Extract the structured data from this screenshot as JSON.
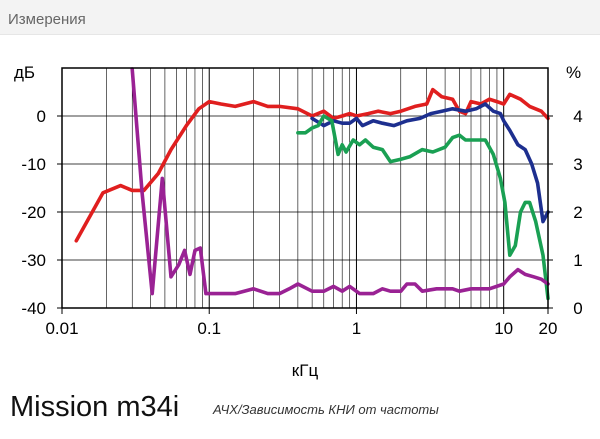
{
  "header": {
    "title": "Измерения"
  },
  "footer": {
    "model": "Mission m34i",
    "caption": "АЧХ/Зависимость КНИ от частоты"
  },
  "colors": {
    "frame": "#000000",
    "grid": "#000000",
    "background": "#ffffff"
  },
  "chart_data": {
    "type": "line",
    "xscale": "log",
    "xlabel": "кГц",
    "ylabel_left": "дБ",
    "ylabel_right": "%",
    "xlim": [
      0.01,
      20
    ],
    "ylim_left": [
      -40,
      10
    ],
    "ylim_right": [
      0,
      5
    ],
    "xticks": [
      {
        "value": 0.01,
        "label": "0.01"
      },
      {
        "value": 0.1,
        "label": "0.1"
      },
      {
        "value": 1,
        "label": "1"
      },
      {
        "value": 10,
        "label": "10"
      },
      {
        "value": 20,
        "label": "20"
      }
    ],
    "yticks_left": [
      0,
      -10,
      -20,
      -30,
      -40
    ],
    "yticks_right": [
      0,
      1,
      2,
      3,
      4
    ],
    "grid": true,
    "series": [
      {
        "color": "#e01f1f",
        "axis": "left",
        "points": [
          [
            0.0125,
            -26
          ],
          [
            0.019,
            -16
          ],
          [
            0.025,
            -14.5
          ],
          [
            0.03,
            -15.5
          ],
          [
            0.036,
            -15.5
          ],
          [
            0.045,
            -12
          ],
          [
            0.055,
            -7
          ],
          [
            0.07,
            -2
          ],
          [
            0.085,
            1.5
          ],
          [
            0.1,
            3
          ],
          [
            0.12,
            2.5
          ],
          [
            0.15,
            2
          ],
          [
            0.2,
            3
          ],
          [
            0.25,
            2
          ],
          [
            0.3,
            2
          ],
          [
            0.4,
            1.5
          ],
          [
            0.5,
            0
          ],
          [
            0.6,
            1
          ],
          [
            0.7,
            -0.5
          ],
          [
            0.8,
            0
          ],
          [
            0.9,
            0.5
          ],
          [
            1,
            0
          ],
          [
            1.2,
            0.5
          ],
          [
            1.4,
            1
          ],
          [
            1.7,
            0.5
          ],
          [
            2,
            1
          ],
          [
            2.5,
            2
          ],
          [
            3,
            2.5
          ],
          [
            3.3,
            5.5
          ],
          [
            3.8,
            4
          ],
          [
            4.5,
            3.5
          ],
          [
            5,
            1
          ],
          [
            5.5,
            0.5
          ],
          [
            6,
            3
          ],
          [
            7,
            2.5
          ],
          [
            8,
            3.5
          ],
          [
            9,
            3
          ],
          [
            10,
            2.5
          ],
          [
            11,
            4.5
          ],
          [
            13,
            3.5
          ],
          [
            15,
            2
          ],
          [
            18,
            1
          ],
          [
            20,
            -0.5
          ]
        ]
      },
      {
        "color": "#1d2f8f",
        "axis": "left",
        "points": [
          [
            0.5,
            -0.5
          ],
          [
            0.6,
            -2
          ],
          [
            0.7,
            -1
          ],
          [
            0.8,
            -1.5
          ],
          [
            0.9,
            -1.5
          ],
          [
            1,
            -0.5
          ],
          [
            1.1,
            -2
          ],
          [
            1.3,
            -1
          ],
          [
            1.5,
            -1.5
          ],
          [
            1.8,
            -2
          ],
          [
            2.2,
            -1
          ],
          [
            2.7,
            -0.5
          ],
          [
            3.2,
            0.5
          ],
          [
            3.8,
            1
          ],
          [
            4.5,
            1.5
          ],
          [
            5.5,
            1
          ],
          [
            6.5,
            1.5
          ],
          [
            7.5,
            2.5
          ],
          [
            8.5,
            1
          ],
          [
            9.5,
            0.5
          ],
          [
            10,
            -1
          ],
          [
            11,
            -3
          ],
          [
            12.5,
            -6
          ],
          [
            14,
            -7
          ],
          [
            15.5,
            -10
          ],
          [
            17,
            -14
          ],
          [
            18.5,
            -22
          ],
          [
            20,
            -20
          ]
        ]
      },
      {
        "color": "#1aa053",
        "axis": "left",
        "points": [
          [
            0.4,
            -3.5
          ],
          [
            0.45,
            -3.5
          ],
          [
            0.5,
            -2.5
          ],
          [
            0.55,
            -2
          ],
          [
            0.6,
            0
          ],
          [
            0.68,
            -1
          ],
          [
            0.72,
            -5
          ],
          [
            0.75,
            -8
          ],
          [
            0.8,
            -6
          ],
          [
            0.85,
            -7.5
          ],
          [
            0.95,
            -5
          ],
          [
            1.05,
            -6
          ],
          [
            1.15,
            -5
          ],
          [
            1.3,
            -6.5
          ],
          [
            1.5,
            -7
          ],
          [
            1.7,
            -9.5
          ],
          [
            2,
            -9
          ],
          [
            2.3,
            -8.5
          ],
          [
            2.8,
            -7
          ],
          [
            3.3,
            -7.5
          ],
          [
            4,
            -6.5
          ],
          [
            4.5,
            -4.5
          ],
          [
            5,
            -4
          ],
          [
            5.5,
            -5
          ],
          [
            6.5,
            -5
          ],
          [
            7.5,
            -5
          ],
          [
            8.5,
            -8
          ],
          [
            9.5,
            -13
          ],
          [
            10.2,
            -18
          ],
          [
            11,
            -29
          ],
          [
            12,
            -27
          ],
          [
            13,
            -20
          ],
          [
            14,
            -18
          ],
          [
            15,
            -18
          ],
          [
            16.5,
            -22
          ],
          [
            18.5,
            -29
          ],
          [
            20,
            -38
          ]
        ]
      },
      {
        "color": "#9a2294",
        "axis": "left",
        "points": [
          [
            0.03,
            10
          ],
          [
            0.035,
            -16
          ],
          [
            0.041,
            -37
          ],
          [
            0.048,
            -13
          ],
          [
            0.055,
            -33.5
          ],
          [
            0.062,
            -31
          ],
          [
            0.068,
            -28
          ],
          [
            0.074,
            -33
          ],
          [
            0.08,
            -28
          ],
          [
            0.087,
            -27.5
          ],
          [
            0.095,
            -37
          ],
          [
            0.12,
            -37
          ],
          [
            0.15,
            -37
          ],
          [
            0.2,
            -36
          ],
          [
            0.25,
            -37
          ],
          [
            0.3,
            -37
          ],
          [
            0.35,
            -36
          ],
          [
            0.4,
            -35
          ],
          [
            0.5,
            -36.5
          ],
          [
            0.6,
            -36.5
          ],
          [
            0.7,
            -35.5
          ],
          [
            0.8,
            -36.5
          ],
          [
            0.9,
            -35.5
          ],
          [
            1.05,
            -37
          ],
          [
            1.3,
            -37
          ],
          [
            1.5,
            -36
          ],
          [
            1.7,
            -36.5
          ],
          [
            2,
            -36.5
          ],
          [
            2.2,
            -35
          ],
          [
            2.5,
            -35
          ],
          [
            2.8,
            -36.5
          ],
          [
            3.5,
            -36
          ],
          [
            4.5,
            -36
          ],
          [
            5,
            -36.5
          ],
          [
            6,
            -36
          ],
          [
            8,
            -36
          ],
          [
            10,
            -35
          ],
          [
            11,
            -33.5
          ],
          [
            12.5,
            -32
          ],
          [
            14,
            -33
          ],
          [
            16,
            -33.5
          ],
          [
            18,
            -34
          ],
          [
            20,
            -35
          ]
        ]
      }
    ]
  }
}
